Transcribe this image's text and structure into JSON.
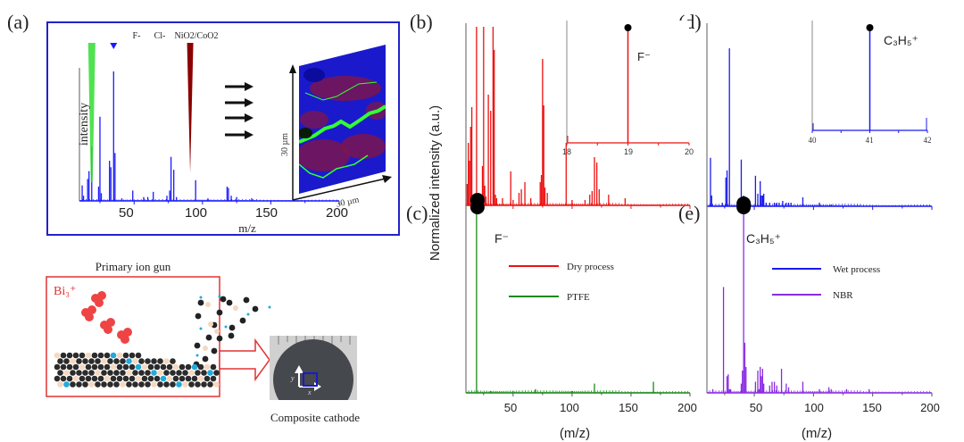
{
  "figure": {
    "panel_labels": [
      "(a)",
      "(b)",
      "(c)",
      "(d)",
      "(e)"
    ],
    "shared_ylabel": "Normalized intensity (a.u.)"
  },
  "panel_a": {
    "ylabel": "intensity",
    "xlabel": "m/z",
    "markers": [
      {
        "label": "F-",
        "x": 19,
        "color": "#33dd33"
      },
      {
        "label": "Cl-",
        "x": 35,
        "color": "#1a1aff"
      },
      {
        "label": "NiO2/CoO2",
        "x": 91,
        "color": "#8b0000"
      }
    ],
    "map": {
      "ylabel": "30 µm",
      "xlabel": "30 µm"
    },
    "frame_color": "#2222cc"
  },
  "schematic": {
    "title": "Primary ion gun",
    "ion_label": "Bi₃⁺",
    "sample_caption": "Composite cathode",
    "axis_x": "x",
    "axis_y": "y",
    "ion_color": "#ee3333"
  },
  "chart_data": [
    {
      "id": "a",
      "type": "bar",
      "title": "",
      "xlabel": "m/z",
      "ylabel": "intensity",
      "xlim": [
        10,
        200
      ],
      "ylim": [
        0,
        1
      ],
      "xticks": [
        50,
        100,
        150,
        200
      ],
      "color": "#1a1aff",
      "x": [
        12,
        13,
        16,
        17,
        19,
        24,
        25,
        26,
        32,
        33,
        35,
        36,
        41,
        49,
        57,
        60,
        64,
        74,
        76,
        77,
        79,
        81,
        95,
        104,
        118,
        119,
        121,
        125,
        136
      ],
      "values": [
        0.12,
        0.04,
        0.17,
        0.23,
        0.42,
        0.11,
        0.65,
        0.06,
        0.31,
        0.26,
        1.0,
        0.37,
        0.02,
        0.08,
        0.03,
        0.03,
        0.07,
        0.04,
        0.08,
        0.34,
        0.24,
        0.03,
        0.16,
        0.02,
        0.11,
        0.1,
        0.04,
        0.03,
        0.02
      ]
    },
    {
      "id": "b",
      "type": "bar",
      "series_name": "Dry process",
      "xlim": [
        10,
        200
      ],
      "ylim": [
        0,
        1
      ],
      "color": "#ee1111",
      "x": [
        11,
        12,
        13,
        14,
        15,
        19,
        24,
        25,
        26,
        27,
        29,
        31,
        33,
        34,
        35,
        36,
        41,
        48,
        50,
        55,
        57,
        60,
        65,
        73,
        74,
        75,
        76,
        77,
        79,
        95,
        100,
        111,
        115,
        117,
        119,
        121,
        123,
        131,
        145
      ],
      "values": [
        0.12,
        0.35,
        0.25,
        0.44,
        0.55,
        1.0,
        0.22,
        1.0,
        0.11,
        0.05,
        0.62,
        0.53,
        1.0,
        0.87,
        0.06,
        0.04,
        0.04,
        0.19,
        0.03,
        0.07,
        0.09,
        0.13,
        0.04,
        0.13,
        0.17,
        0.82,
        0.56,
        0.1,
        0.07,
        0.35,
        0.03,
        0.03,
        0.06,
        0.08,
        0.27,
        0.24,
        0.09,
        0.06,
        0.04
      ]
    },
    {
      "id": "b-inset",
      "type": "line",
      "xlim": [
        18,
        20
      ],
      "xticks": [
        18,
        19,
        20
      ],
      "peak_x": 19,
      "peak_label": "F⁻",
      "color": "#ee1111"
    },
    {
      "id": "c",
      "type": "bar",
      "series_name": "PTFE",
      "xlabel": "(m/z)",
      "xlim": [
        10,
        200
      ],
      "xticks": [
        50,
        100,
        150,
        200
      ],
      "ylim": [
        0,
        1
      ],
      "color": "#1a8a1a",
      "peak_label": "F⁻",
      "peak_x": 19,
      "x": [
        19,
        31,
        50,
        69,
        100,
        119,
        169
      ],
      "values": [
        1.0,
        0.01,
        0.01,
        0.02,
        0.01,
        0.05,
        0.06
      ]
    },
    {
      "id": "d",
      "type": "bar",
      "series_name": "Wet process",
      "xlim": [
        10,
        200
      ],
      "ylim": [
        0,
        1
      ],
      "color": "#1a1aee",
      "x": [
        13,
        14,
        23,
        26,
        27,
        29,
        39,
        41,
        42,
        43,
        51,
        53,
        55,
        56,
        57,
        58,
        60,
        63,
        67,
        69,
        71,
        74,
        77,
        79,
        81,
        91,
        105,
        115
      ],
      "values": [
        0.27,
        0.06,
        0.02,
        0.16,
        0.2,
        0.88,
        0.26,
        0.06,
        0.03,
        0.03,
        0.17,
        0.07,
        0.14,
        0.06,
        0.06,
        0.07,
        0.02,
        0.02,
        0.02,
        0.02,
        0.02,
        0.03,
        0.02,
        0.02,
        0.02,
        0.05,
        0.02,
        0.01
      ]
    },
    {
      "id": "d-inset",
      "type": "line",
      "xlim": [
        40,
        42
      ],
      "xticks": [
        40,
        41,
        42
      ],
      "peak_x": 41,
      "peak_label": "C₃H₅⁺",
      "color": "#1a1aee"
    },
    {
      "id": "e",
      "type": "bar",
      "series_name": "NBR",
      "xlabel": "(m/z)",
      "xlim": [
        10,
        200
      ],
      "xticks": [
        50,
        100,
        150,
        200
      ],
      "ylim": [
        0,
        1
      ],
      "color": "#8a2be2",
      "peak_label": "C₃H₅⁺",
      "peak_x": 41,
      "x": [
        15,
        24,
        27,
        28,
        29,
        30,
        39,
        40,
        41,
        42,
        43,
        51,
        53,
        54,
        55,
        56,
        57,
        58,
        63,
        65,
        67,
        69,
        73,
        77,
        79,
        91,
        105,
        113,
        115,
        128,
        147
      ],
      "values": [
        0.02,
        0.57,
        0.09,
        0.1,
        0.02,
        0.02,
        0.05,
        0.12,
        1.0,
        0.27,
        0.14,
        0.06,
        0.12,
        0.02,
        0.14,
        0.09,
        0.13,
        0.05,
        0.04,
        0.06,
        0.06,
        0.04,
        0.13,
        0.05,
        0.03,
        0.06,
        0.02,
        0.03,
        0.02,
        0.02,
        0.02
      ]
    }
  ],
  "legends": {
    "left": [
      {
        "label": "Dry process",
        "color": "#ee1111"
      },
      {
        "label": "PTFE",
        "color": "#1a8a1a"
      }
    ],
    "right": [
      {
        "label": "Wet process",
        "color": "#1a1aee"
      },
      {
        "label": "NBR",
        "color": "#8a2be2"
      }
    ]
  }
}
